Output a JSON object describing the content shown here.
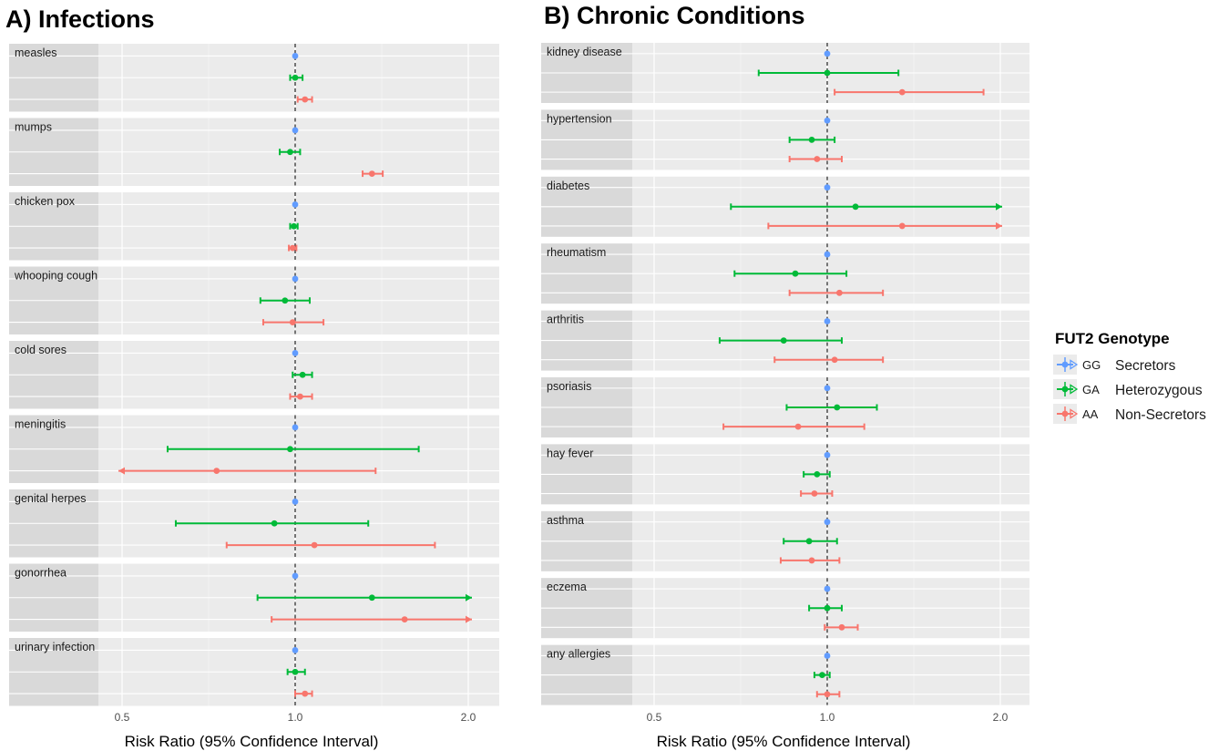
{
  "chart_data": {
    "type": "forest",
    "scale": "log2",
    "reference_line": 1.0,
    "xlim": [
      0.39,
      2.3
    ],
    "xticks": [
      {
        "value": 0.5,
        "label": "0.5"
      },
      {
        "value": 1.0,
        "label": "1.0"
      },
      {
        "value": 2.0,
        "label": "2.0"
      }
    ],
    "xlabel": "Risk Ratio (95% Confidence Interval)",
    "legend": {
      "title": "FUT2 Genotype",
      "placement": "right",
      "items": [
        {
          "code": "GG",
          "label": "Secretors",
          "color": "#619CFF"
        },
        {
          "code": "GA",
          "label": "Heterozygous",
          "color": "#00BA38"
        },
        {
          "code": "AA",
          "label": "Non-Secretors",
          "color": "#F8766D"
        }
      ]
    },
    "panels": [
      {
        "title": "A) Infections",
        "facets": [
          {
            "label": "measles",
            "rows": [
              {
                "g": "GG",
                "est": 1.0,
                "lo": 1.0,
                "hi": 1.0
              },
              {
                "g": "GA",
                "est": 1.0,
                "lo": 0.98,
                "hi": 1.03
              },
              {
                "g": "AA",
                "est": 1.04,
                "lo": 1.01,
                "hi": 1.07
              }
            ]
          },
          {
            "label": "mumps",
            "rows": [
              {
                "g": "GG",
                "est": 1.0,
                "lo": 1.0,
                "hi": 1.0
              },
              {
                "g": "GA",
                "est": 0.98,
                "lo": 0.94,
                "hi": 1.02
              },
              {
                "g": "AA",
                "est": 1.36,
                "lo": 1.31,
                "hi": 1.42
              }
            ]
          },
          {
            "label": "chicken pox",
            "rows": [
              {
                "g": "GG",
                "est": 1.0,
                "lo": 1.0,
                "hi": 1.0
              },
              {
                "g": "GA",
                "est": 0.995,
                "lo": 0.98,
                "hi": 1.01
              },
              {
                "g": "AA",
                "est": 0.99,
                "lo": 0.975,
                "hi": 1.005
              }
            ]
          },
          {
            "label": "whooping cough",
            "rows": [
              {
                "g": "GG",
                "est": 1.0,
                "lo": 1.0,
                "hi": 1.0
              },
              {
                "g": "GA",
                "est": 0.96,
                "lo": 0.87,
                "hi": 1.06
              },
              {
                "g": "AA",
                "est": 0.99,
                "lo": 0.88,
                "hi": 1.12
              }
            ]
          },
          {
            "label": "cold sores",
            "rows": [
              {
                "g": "GG",
                "est": 1.0,
                "lo": 1.0,
                "hi": 1.0
              },
              {
                "g": "GA",
                "est": 1.03,
                "lo": 0.99,
                "hi": 1.07
              },
              {
                "g": "AA",
                "est": 1.02,
                "lo": 0.98,
                "hi": 1.07
              }
            ]
          },
          {
            "label": "meningitis",
            "rows": [
              {
                "g": "GG",
                "est": 1.0,
                "lo": 1.0,
                "hi": 1.0
              },
              {
                "g": "GA",
                "est": 0.98,
                "lo": 0.6,
                "hi": 1.64
              },
              {
                "g": "AA",
                "est": 0.73,
                "lo": 0.39,
                "hi": 1.38
              }
            ]
          },
          {
            "label": "genital herpes",
            "rows": [
              {
                "g": "GG",
                "est": 1.0,
                "lo": 1.0,
                "hi": 1.0
              },
              {
                "g": "GA",
                "est": 0.92,
                "lo": 0.62,
                "hi": 1.34
              },
              {
                "g": "AA",
                "est": 1.08,
                "lo": 0.76,
                "hi": 1.75
              }
            ]
          },
          {
            "label": "gonorrhea",
            "rows": [
              {
                "g": "GG",
                "est": 1.0,
                "lo": 1.0,
                "hi": 1.0
              },
              {
                "g": "GA",
                "est": 1.36,
                "lo": 0.86,
                "hi": 2.3
              },
              {
                "g": "AA",
                "est": 1.55,
                "lo": 0.91,
                "hi": 2.3
              }
            ]
          },
          {
            "label": "urinary infection",
            "rows": [
              {
                "g": "GG",
                "est": 1.0,
                "lo": 1.0,
                "hi": 1.0
              },
              {
                "g": "GA",
                "est": 1.0,
                "lo": 0.97,
                "hi": 1.04
              },
              {
                "g": "AA",
                "est": 1.04,
                "lo": 1.0,
                "hi": 1.07
              }
            ]
          }
        ]
      },
      {
        "title": "B) Chronic Conditions",
        "facets": [
          {
            "label": "kidney disease",
            "rows": [
              {
                "g": "GG",
                "est": 1.0,
                "lo": 1.0,
                "hi": 1.0
              },
              {
                "g": "GA",
                "est": 1.0,
                "lo": 0.76,
                "hi": 1.33
              },
              {
                "g": "AA",
                "est": 1.35,
                "lo": 1.03,
                "hi": 1.87
              }
            ]
          },
          {
            "label": "hypertension",
            "rows": [
              {
                "g": "GG",
                "est": 1.0,
                "lo": 1.0,
                "hi": 1.0
              },
              {
                "g": "GA",
                "est": 0.94,
                "lo": 0.86,
                "hi": 1.03
              },
              {
                "g": "AA",
                "est": 0.96,
                "lo": 0.86,
                "hi": 1.06
              }
            ]
          },
          {
            "label": "diabetes",
            "rows": [
              {
                "g": "GG",
                "est": 1.0,
                "lo": 1.0,
                "hi": 1.0
              },
              {
                "g": "GA",
                "est": 1.12,
                "lo": 0.68,
                "hi": 2.3
              },
              {
                "g": "AA",
                "est": 1.35,
                "lo": 0.79,
                "hi": 2.3
              }
            ]
          },
          {
            "label": "rheumatism",
            "rows": [
              {
                "g": "GG",
                "est": 1.0,
                "lo": 1.0,
                "hi": 1.0
              },
              {
                "g": "GA",
                "est": 0.88,
                "lo": 0.69,
                "hi": 1.08
              },
              {
                "g": "AA",
                "est": 1.05,
                "lo": 0.86,
                "hi": 1.25
              }
            ]
          },
          {
            "label": "arthritis",
            "rows": [
              {
                "g": "GG",
                "est": 1.0,
                "lo": 1.0,
                "hi": 1.0
              },
              {
                "g": "GA",
                "est": 0.84,
                "lo": 0.65,
                "hi": 1.06
              },
              {
                "g": "AA",
                "est": 1.03,
                "lo": 0.81,
                "hi": 1.25
              }
            ]
          },
          {
            "label": "psoriasis",
            "rows": [
              {
                "g": "GG",
                "est": 1.0,
                "lo": 1.0,
                "hi": 1.0
              },
              {
                "g": "GA",
                "est": 1.04,
                "lo": 0.85,
                "hi": 1.22
              },
              {
                "g": "AA",
                "est": 0.89,
                "lo": 0.66,
                "hi": 1.16
              }
            ]
          },
          {
            "label": "hay fever",
            "rows": [
              {
                "g": "GG",
                "est": 1.0,
                "lo": 1.0,
                "hi": 1.0
              },
              {
                "g": "GA",
                "est": 0.96,
                "lo": 0.91,
                "hi": 1.01
              },
              {
                "g": "AA",
                "est": 0.95,
                "lo": 0.9,
                "hi": 1.02
              }
            ]
          },
          {
            "label": "asthma",
            "rows": [
              {
                "g": "GG",
                "est": 1.0,
                "lo": 1.0,
                "hi": 1.0
              },
              {
                "g": "GA",
                "est": 0.93,
                "lo": 0.84,
                "hi": 1.04
              },
              {
                "g": "AA",
                "est": 0.94,
                "lo": 0.83,
                "hi": 1.05
              }
            ]
          },
          {
            "label": "eczema",
            "rows": [
              {
                "g": "GG",
                "est": 1.0,
                "lo": 1.0,
                "hi": 1.0
              },
              {
                "g": "GA",
                "est": 1.0,
                "lo": 0.93,
                "hi": 1.06
              },
              {
                "g": "AA",
                "est": 1.06,
                "lo": 0.99,
                "hi": 1.13
              }
            ]
          },
          {
            "label": "any allergies",
            "rows": [
              {
                "g": "GG",
                "est": 1.0,
                "lo": 1.0,
                "hi": 1.0
              },
              {
                "g": "GA",
                "est": 0.98,
                "lo": 0.95,
                "hi": 1.01
              },
              {
                "g": "AA",
                "est": 1.0,
                "lo": 0.96,
                "hi": 1.05
              }
            ]
          }
        ]
      }
    ]
  }
}
